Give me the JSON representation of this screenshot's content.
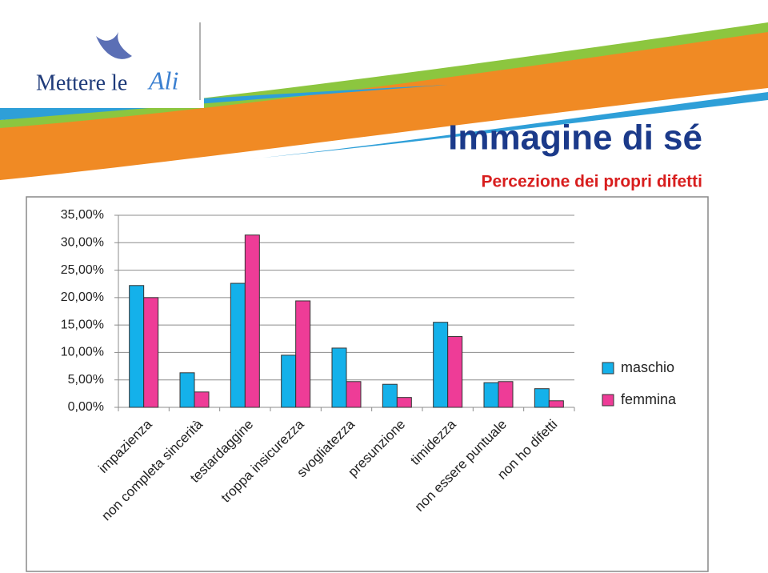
{
  "header": {
    "logo": "Mettere le",
    "logo_accent": "Ali"
  },
  "chart_data": {
    "type": "bar",
    "title": "Immagine di sé",
    "subtitle": "Percezione dei propri difetti",
    "categories": [
      "impazienza",
      "non completa sincerità",
      "testardaggine",
      "troppa insicurezza",
      "svogliatezza",
      "presunzione",
      "timidezza",
      "non essere puntuale",
      "non ho difetti"
    ],
    "series": [
      {
        "name": "maschio",
        "color": "#14b1ea",
        "values": [
          22.2,
          6.3,
          22.6,
          9.5,
          10.8,
          4.2,
          15.5,
          4.5,
          3.4
        ]
      },
      {
        "name": "femmina",
        "color": "#ee3c97",
        "values": [
          20.0,
          2.8,
          31.4,
          19.4,
          4.7,
          1.8,
          12.9,
          4.7,
          1.2
        ]
      }
    ],
    "ylim": [
      0,
      35
    ],
    "yticks": [
      {
        "value": 0,
        "label": "0,00%"
      },
      {
        "value": 5,
        "label": "5,00%"
      },
      {
        "value": 10,
        "label": "10,00%"
      },
      {
        "value": 15,
        "label": "15,00%"
      },
      {
        "value": 20,
        "label": "20,00%"
      },
      {
        "value": 25,
        "label": "25,00%"
      },
      {
        "value": 30,
        "label": "30,00%"
      },
      {
        "value": 35,
        "label": "35,00%"
      }
    ],
    "grid": true,
    "legend": "right"
  }
}
